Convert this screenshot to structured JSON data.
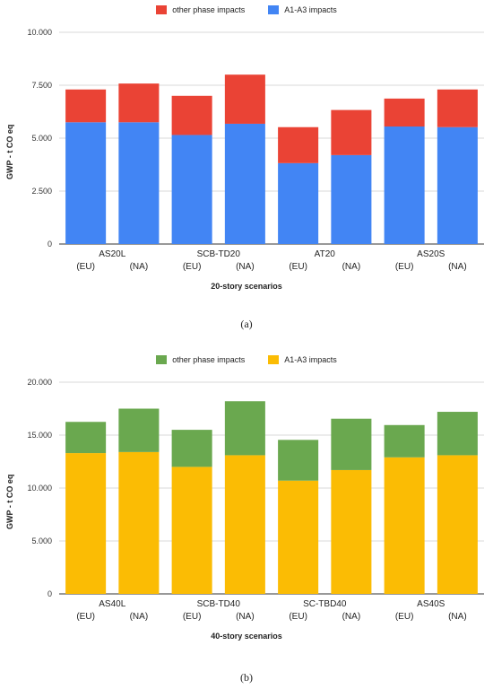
{
  "chart_data": [
    {
      "type": "bar",
      "stacked": true,
      "ylabel": "GWP - t CO eq",
      "xlabel": "20-story scenarios",
      "caption": "(a)",
      "categories": [
        "AS20L (EU)",
        "AS20L (NA)",
        "SCB-TD20 (EU)",
        "SCB-TD20 (NA)",
        "AT20 (EU)",
        "AT20 (NA)",
        "AS20S (EU)",
        "AS20S (NA)"
      ],
      "groups": [
        "AS20L",
        "SCB-TD20",
        "AT20",
        "AS20S"
      ],
      "region_labels": [
        "(EU)",
        "(NA)"
      ],
      "ylim": [
        0,
        10000
      ],
      "yticks": [
        "0",
        "2.500",
        "5.000",
        "7.500",
        "10.000"
      ],
      "grid": true,
      "legend_position": "top",
      "series": [
        {
          "name": "A1-A3 impacts",
          "color": "#4285F4",
          "values": [
            5750,
            5750,
            5150,
            5680,
            3820,
            4200,
            5550,
            5520
          ]
        },
        {
          "name": "other phase impacts",
          "color": "#EA4335",
          "values": [
            1550,
            1830,
            1850,
            2320,
            1700,
            2130,
            1320,
            1780
          ]
        }
      ],
      "legend_order": [
        "other phase impacts",
        "A1-A3 impacts"
      ]
    },
    {
      "type": "bar",
      "stacked": true,
      "ylabel": "GWP - t CO eq",
      "xlabel": "40-story scenarios",
      "caption": "(b)",
      "categories": [
        "AS40L (EU)",
        "AS40L (NA)",
        "SCB-TD40 (EU)",
        "SCB-TD40 (NA)",
        "SC-TBD40 (EU)",
        "SC-TBD40 (NA)",
        "AS40S (EU)",
        "AS40S (NA)"
      ],
      "groups": [
        "AS40L",
        "SCB-TD40",
        "SC-TBD40",
        "AS40S"
      ],
      "region_labels": [
        "(EU)",
        "(NA)"
      ],
      "ylim": [
        0,
        20000
      ],
      "yticks": [
        "0",
        "5.000",
        "10.000",
        "15.000",
        "20.000"
      ],
      "grid": true,
      "legend_position": "top",
      "series": [
        {
          "name": "A1-A3 impacts",
          "color": "#FBBC04",
          "values": [
            13300,
            13400,
            12000,
            13100,
            10700,
            11700,
            12900,
            13100
          ]
        },
        {
          "name": "other phase impacts",
          "color": "#6AA84F",
          "values": [
            2950,
            4100,
            3500,
            5100,
            3850,
            4850,
            3050,
            4100
          ]
        }
      ],
      "legend_order": [
        "other phase impacts",
        "A1-A3 impacts"
      ]
    }
  ]
}
